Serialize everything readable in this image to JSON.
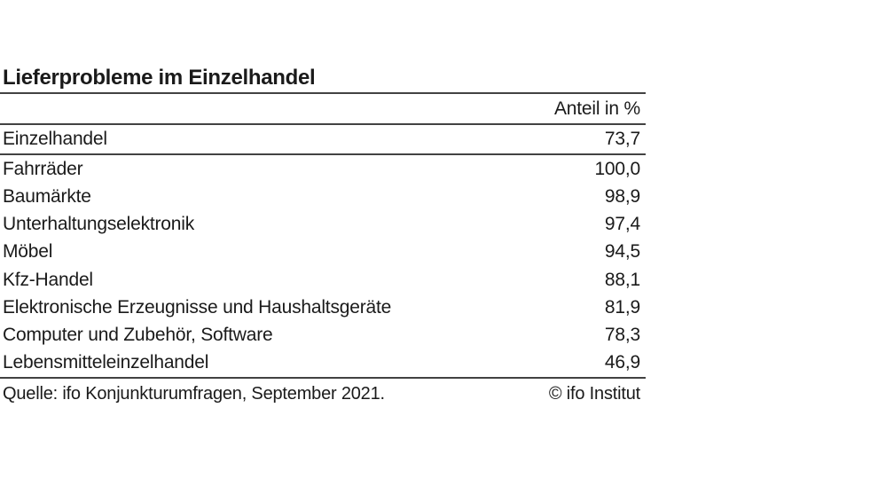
{
  "figure": {
    "title": "Lieferprobleme im Einzelhandel",
    "value_column_header": "Anteil in %",
    "source": "Quelle: ifo Konjunkturumfragen, September 2021.",
    "copyright": "© ifo Institut"
  },
  "chart_data": {
    "type": "table",
    "title": "Lieferprobleme im Einzelhandel",
    "columns": [
      "",
      "Anteil in %"
    ],
    "unit": "Anteil in %",
    "layout": {
      "value_alignment": "right",
      "summary_row_index": 0,
      "rules": [
        "below-title",
        "below-column-header",
        "below-summary-row",
        "below-last-row"
      ]
    },
    "rows": [
      {
        "label": "Einzelhandel",
        "value": 73.7,
        "display": "73,7"
      },
      {
        "label": "Fahrräder",
        "value": 100.0,
        "display": "100,0"
      },
      {
        "label": "Baumärkte",
        "value": 98.9,
        "display": "98,9"
      },
      {
        "label": "Unterhaltungselektronik",
        "value": 97.4,
        "display": "97,4"
      },
      {
        "label": "Möbel",
        "value": 94.5,
        "display": "94,5"
      },
      {
        "label": "Kfz-Handel",
        "value": 88.1,
        "display": "88,1"
      },
      {
        "label": "Elektronische Erzeugnisse und Haushaltsgeräte",
        "value": 81.9,
        "display": "81,9"
      },
      {
        "label": "Computer und Zubehör, Software",
        "value": 78.3,
        "display": "78,3"
      },
      {
        "label": "Lebensmitteleinzelhandel",
        "value": 46.9,
        "display": "46,9"
      }
    ],
    "source": "Quelle: ifo Konjunkturumfragen, September 2021.",
    "copyright": "© ifo Institut"
  }
}
